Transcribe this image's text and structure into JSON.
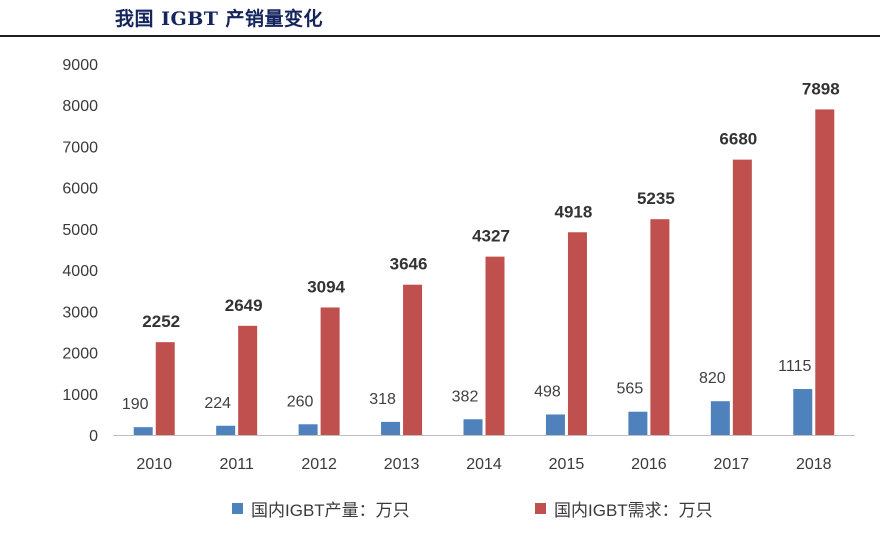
{
  "title": "我国 IGBT 产销量变化",
  "colors": {
    "production": "#4f81bd",
    "demand": "#c0504d"
  },
  "chart_data": {
    "type": "bar",
    "title": "我国 IGBT 产销量变化",
    "categories": [
      "2010",
      "2011",
      "2012",
      "2013",
      "2014",
      "2015",
      "2016",
      "2017",
      "2018"
    ],
    "series": [
      {
        "name": "国内IGBT产量：万只",
        "values": [
          190,
          224,
          260,
          318,
          382,
          498,
          565,
          820,
          1115
        ]
      },
      {
        "name": "国内IGBT需求：万只",
        "values": [
          2252,
          2649,
          3094,
          3646,
          4327,
          4918,
          5235,
          6680,
          7898
        ]
      }
    ],
    "y_ticks": [
      "0",
      "1000",
      "2000",
      "3000",
      "4000",
      "5000",
      "6000",
      "7000",
      "8000",
      "9000"
    ],
    "ylim": [
      0,
      9000
    ],
    "grid": false,
    "legend_position": "bottom"
  }
}
